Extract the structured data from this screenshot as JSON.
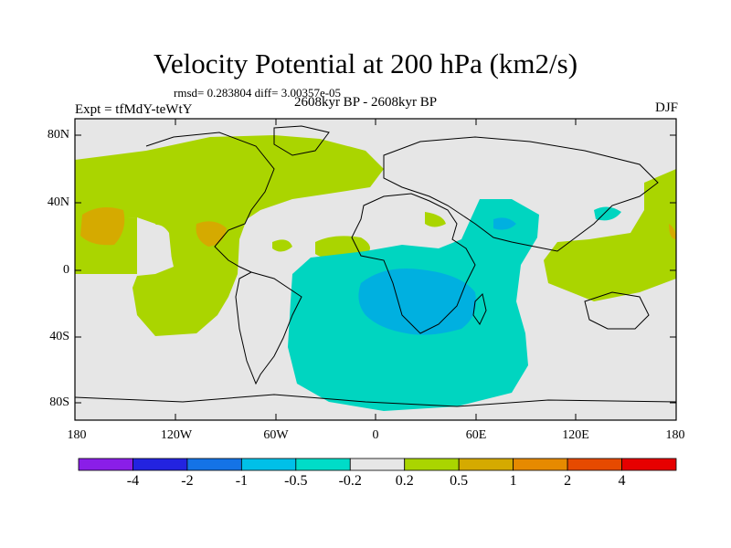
{
  "title": "Velocity Potential at 200 hPa (km2/s)",
  "stats": "rmsd= 0.283804  diff= 3.00357e-05",
  "period": "2608kyr BP - 2608kyr BP",
  "expt": "Expt = tfMdY-teWtY",
  "season": "DJF",
  "colors": {
    "background_gray": "#e6e6e6",
    "pos_02_05": "#aad500",
    "pos_05_1": "#d5aa00",
    "pos_1_2": "#e08000",
    "neg_02_05": "#00d5c0",
    "neg_05_1": "#00b0e0"
  },
  "map": {
    "lat_labels": [
      "80N",
      "40N",
      "0",
      "40S",
      "80S"
    ],
    "lon_labels": [
      "180",
      "120W",
      "60W",
      "0",
      "60E",
      "120E",
      "180"
    ]
  },
  "colorbar": {
    "colors": [
      "#8a1ee8",
      "#2323e0",
      "#1473e6",
      "#00c0e8",
      "#00dcc8",
      "#e6e6e6",
      "#aad500",
      "#d5aa00",
      "#e68a00",
      "#e64a00",
      "#e60000"
    ],
    "labels": [
      "-4",
      "-2",
      "-1",
      "-0.5",
      "-0.2",
      "0.2",
      "0.5",
      "1",
      "2",
      "4"
    ]
  }
}
